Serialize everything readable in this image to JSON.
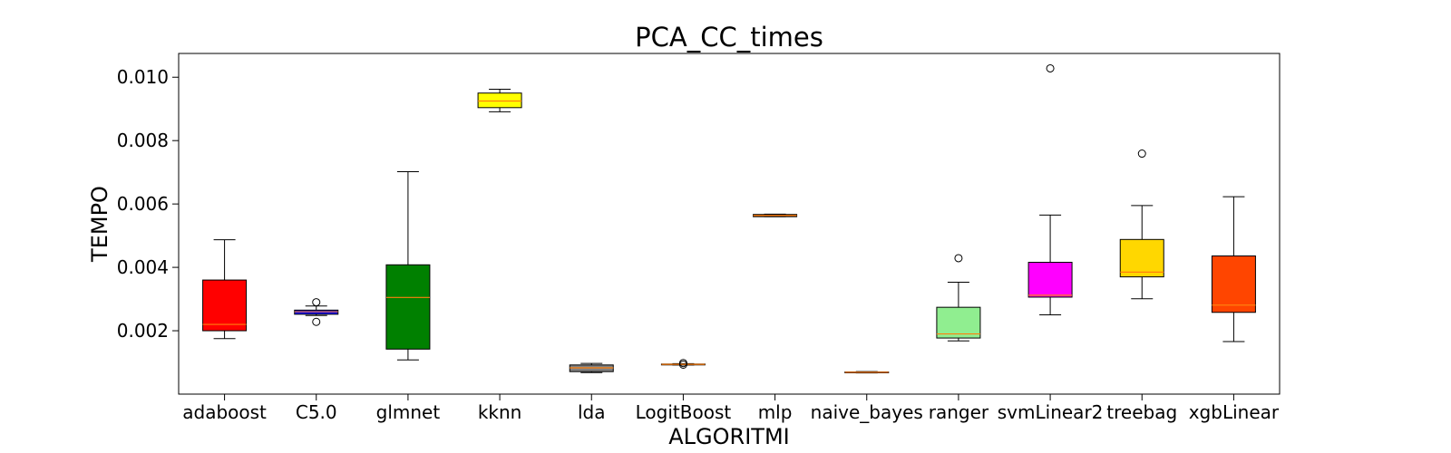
{
  "chart_data": {
    "type": "boxplot",
    "title": "PCA_CC_times",
    "xlabel": "ALGORITMI",
    "ylabel": "TEMPO",
    "ylim": [
      0.0,
      0.01075
    ],
    "yticks": [
      0.002,
      0.004,
      0.006,
      0.008,
      0.01
    ],
    "ytick_labels": [
      "0.002",
      "0.004",
      "0.006",
      "0.008",
      "0.010"
    ],
    "grid": false,
    "median_color": "#ff7f0e",
    "categories": [
      "adaboost",
      "C5.0",
      "glmnet",
      "kknn",
      "lda",
      "LogitBoost",
      "mlp",
      "naive_bayes",
      "ranger",
      "svmLinear2",
      "treebag",
      "xgbLinear"
    ],
    "boxes": [
      {
        "name": "adaboost",
        "color": "#ff0000",
        "whisker_low": 0.00175,
        "q1": 0.002,
        "median": 0.0022,
        "q3": 0.0036,
        "whisker_high": 0.00487,
        "outliers": []
      },
      {
        "name": "C5.0",
        "color": "#0000ff",
        "whisker_low": 0.00248,
        "q1": 0.00252,
        "median": 0.0026,
        "q3": 0.00265,
        "whisker_high": 0.00278,
        "outliers": [
          0.0029,
          0.00228
        ]
      },
      {
        "name": "glmnet",
        "color": "#008000",
        "whisker_low": 0.00108,
        "q1": 0.00142,
        "median": 0.00305,
        "q3": 0.00408,
        "whisker_high": 0.00702,
        "outliers": []
      },
      {
        "name": "kknn",
        "color": "#ffff00",
        "whisker_low": 0.00891,
        "q1": 0.00904,
        "median": 0.00925,
        "q3": 0.0095,
        "whisker_high": 0.00962,
        "outliers": []
      },
      {
        "name": "lda",
        "color": "#808080",
        "whisker_low": 0.00068,
        "q1": 0.00071,
        "median": 0.00083,
        "q3": 0.00092,
        "whisker_high": 0.00097,
        "outliers": []
      },
      {
        "name": "LogitBoost",
        "color": "#add8e6",
        "whisker_low": 0.00092,
        "q1": 0.00093,
        "median": 0.00094,
        "q3": 0.00095,
        "whisker_high": 0.00096,
        "outliers": [
          0.00098,
          0.00093
        ]
      },
      {
        "name": "mlp",
        "color": "#8b4513",
        "whisker_low": 0.0056,
        "q1": 0.0056,
        "median": 0.00564,
        "q3": 0.00567,
        "whisker_high": 0.00568,
        "outliers": []
      },
      {
        "name": "naive_bayes",
        "color": "#800080",
        "whisker_low": 0.00067,
        "q1": 0.00068,
        "median": 0.00069,
        "q3": 0.0007,
        "whisker_high": 0.00071,
        "outliers": []
      },
      {
        "name": "ranger",
        "color": "#90ee90",
        "whisker_low": 0.00168,
        "q1": 0.00177,
        "median": 0.0019,
        "q3": 0.00274,
        "whisker_high": 0.00353,
        "outliers": [
          0.00429
        ]
      },
      {
        "name": "svmLinear2",
        "color": "#ff00ff",
        "whisker_low": 0.0025,
        "q1": 0.00306,
        "median": 0.00312,
        "q3": 0.00416,
        "whisker_high": 0.00565,
        "outliers": [
          0.01028
        ]
      },
      {
        "name": "treebag",
        "color": "#ffd700",
        "whisker_low": 0.00301,
        "q1": 0.0037,
        "median": 0.00385,
        "q3": 0.00488,
        "whisker_high": 0.00595,
        "outliers": [
          0.00759
        ]
      },
      {
        "name": "xgbLinear",
        "color": "#ff4500",
        "whisker_low": 0.00166,
        "q1": 0.00258,
        "median": 0.00281,
        "q3": 0.00436,
        "whisker_high": 0.00623,
        "outliers": []
      }
    ]
  }
}
